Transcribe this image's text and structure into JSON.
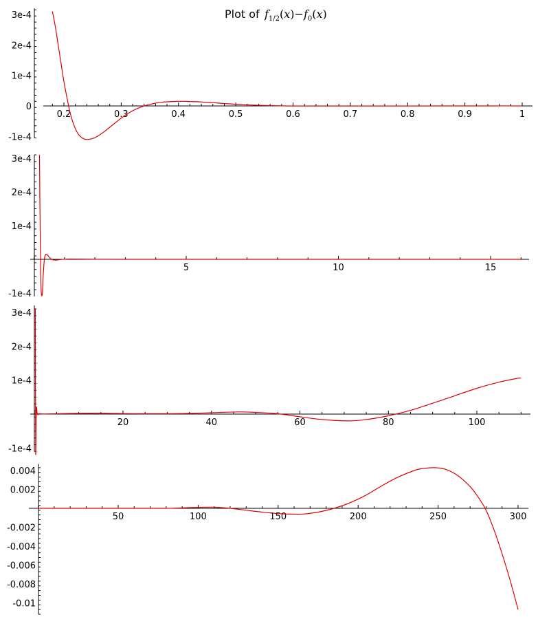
{
  "title": {
    "prefix": "Plot of",
    "formula": "f1/2(x)−f0(x)"
  },
  "colors": {
    "series": "#e00000",
    "axis": "#000000",
    "background": "#ffffff"
  },
  "chart_data": [
    {
      "type": "line",
      "xlim": [
        0.18,
        1.0
      ],
      "ylim": [
        -0.000105,
        0.00032
      ],
      "xticks": [
        0.2,
        0.3,
        0.4,
        0.5,
        0.6,
        0.7,
        0.8,
        0.9,
        1.0
      ],
      "xtick_labels": [
        "0.2",
        "0.3",
        "0.4",
        "0.5",
        "0.6",
        "0.7",
        "0.8",
        "0.9",
        "1"
      ],
      "yticks": [
        -0.0001,
        0,
        0.0001,
        0.0002,
        0.0003
      ],
      "ytick_labels": [
        "-1e-4",
        "0",
        "1e-4",
        "2e-4",
        "3e-4"
      ],
      "grid": false,
      "x": [
        0.18,
        0.185,
        0.19,
        0.195,
        0.2,
        0.205,
        0.21,
        0.215,
        0.22,
        0.225,
        0.23,
        0.235,
        0.24,
        0.25,
        0.26,
        0.27,
        0.28,
        0.29,
        0.3,
        0.31,
        0.32,
        0.33,
        0.34,
        0.35,
        0.36,
        0.37,
        0.38,
        0.39,
        0.4,
        0.41,
        0.42,
        0.44,
        0.46,
        0.48,
        0.5,
        0.52,
        0.54,
        0.56,
        0.58,
        0.6,
        0.65,
        0.7,
        0.75,
        0.8,
        0.85,
        0.9,
        0.95,
        1.0
      ],
      "y": [
        0.00031,
        0.00026,
        0.0002,
        0.00014,
        8e-05,
        3e-05,
        -1.5e-05,
        -5e-05,
        -7.5e-05,
        -9.2e-05,
        -0.000102,
        -0.000108,
        -0.00011,
        -0.000107,
        -9.8e-05,
        -8.5e-05,
        -7e-05,
        -5.5e-05,
        -4e-05,
        -2.7e-05,
        -1.6e-05,
        -7e-06,
        0.0,
        5e-06,
        9e-06,
        1.2e-05,
        1.35e-05,
        1.45e-05,
        1.5e-05,
        1.5e-05,
        1.45e-05,
        1.3e-05,
        1.05e-05,
        8e-06,
        5.5e-06,
        3.5e-06,
        2e-06,
        1e-06,
        3e-07,
        -2e-07,
        -5e-07,
        -5e-07,
        -3e-07,
        -2e-07,
        -1e-07,
        0.0,
        1e-07,
        1e-07
      ]
    },
    {
      "type": "line",
      "xlim": [
        0.18,
        16.0
      ],
      "ylim": [
        -0.00011,
        0.00031
      ],
      "xticks": [
        5,
        10,
        15
      ],
      "xtick_labels": [
        "5",
        "10",
        "15"
      ],
      "yticks": [
        -0.0001,
        0.0001,
        0.0002,
        0.0003
      ],
      "ytick_labels": [
        "-1e-4",
        "1e-4",
        "2e-4",
        "3e-4"
      ],
      "grid": false,
      "x": [
        0.18,
        0.2,
        0.23,
        0.27,
        0.3,
        0.34,
        0.37,
        0.4,
        0.45,
        0.5,
        0.55,
        0.6,
        0.7,
        0.8,
        0.9,
        1.0,
        1.2,
        1.5,
        2.0,
        3.0,
        5.0,
        8.0,
        10.0,
        12.0,
        14.0,
        16.0
      ],
      "y": [
        0.00031,
        0.0001,
        -8e-05,
        -0.000105,
        -5e-05,
        0.0,
        1.2e-05,
        1.5e-05,
        1.2e-05,
        6e-06,
        2e-06,
        -1e-06,
        -2.5e-06,
        -1.5e-06,
        -5e-07,
        5e-07,
        1e-06,
        8e-07,
        3e-07,
        1e-07,
        5e-08,
        3e-08,
        2e-08,
        2e-08,
        1e-08,
        1e-08
      ]
    },
    {
      "type": "line",
      "xlim": [
        0.18,
        112.0
      ],
      "ylim": [
        -0.00011,
        0.00032
      ],
      "xticks": [
        20,
        40,
        60,
        80,
        100
      ],
      "xtick_labels": [
        "20",
        "40",
        "60",
        "80",
        "100"
      ],
      "yticks": [
        -0.0001,
        0.0001,
        0.0002,
        0.0003
      ],
      "ytick_labels": [
        "-1e-4",
        "1e-4",
        "2e-4",
        "3e-4"
      ],
      "grid": false,
      "x": [
        0.18,
        0.26,
        0.4,
        0.6,
        0.8,
        1.0,
        2.0,
        5.0,
        10.0,
        15.0,
        20.0,
        25.0,
        30.0,
        35.0,
        40.0,
        46.0,
        50.0,
        55.0,
        60.0,
        65.0,
        71.0,
        75.0,
        80.0,
        85.0,
        90.0,
        95.0,
        100.0,
        105.0,
        109.0,
        110.0
      ],
      "y": [
        0.00031,
        -0.00011,
        1.5e-05,
        2e-06,
        -2e-06,
        1e-06,
        5e-07,
        1e-06,
        2e-06,
        2.5e-06,
        1.5e-06,
        1e-06,
        1e-06,
        2e-06,
        4e-06,
        6.5e-06,
        5e-06,
        1e-06,
        -8e-06,
        -1.6e-05,
        -2e-05,
        -1.6e-05,
        -5e-06,
        1.1e-05,
        3.2e-05,
        5.4e-05,
        7.6e-05,
        9.4e-05,
        0.000105,
        0.000106
      ]
    },
    {
      "type": "line",
      "xlim": [
        -6.0,
        305.0
      ],
      "ylim": [
        -0.0112,
        0.0047
      ],
      "xticks": [
        50,
        100,
        150,
        200,
        250,
        300
      ],
      "xtick_labels": [
        "50",
        "100",
        "150",
        "200",
        "250",
        "300"
      ],
      "yticks": [
        -0.01,
        -0.008,
        -0.006,
        -0.004,
        -0.002,
        0.002,
        0.004
      ],
      "ytick_labels": [
        "-0.01",
        "-0.008",
        "-0.006",
        "-0.004",
        "-0.002",
        "0.002",
        "0.004"
      ],
      "grid": false,
      "x": [
        0,
        20,
        40,
        60,
        80,
        90,
        100,
        110,
        120,
        130,
        140,
        150,
        160,
        166,
        175,
        185,
        195,
        205,
        215,
        225,
        235,
        240,
        248,
        255,
        262,
        270,
        275,
        280,
        285,
        290,
        295,
        300
      ],
      "y": [
        0.0,
        0.0,
        0.0,
        0.0,
        0.0,
        5e-05,
        0.0001,
        0.00012,
        0.0,
        -0.0002,
        -0.0004,
        -0.00055,
        -0.00062,
        -0.0006,
        -0.0004,
        0.0,
        0.0006,
        0.0014,
        0.0024,
        0.0033,
        0.004,
        0.0042,
        0.0043,
        0.0041,
        0.0035,
        0.0023,
        0.0012,
        -0.0002,
        -0.0023,
        -0.0048,
        -0.0076,
        -0.0107
      ]
    }
  ]
}
